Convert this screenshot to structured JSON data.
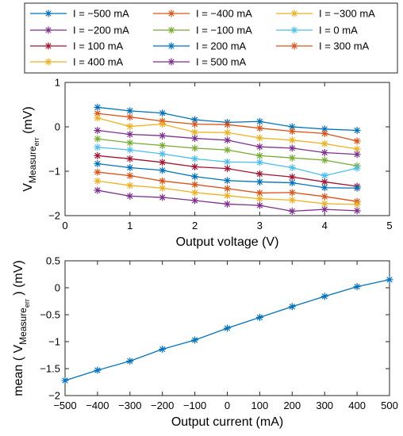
{
  "chart_data": [
    {
      "type": "line",
      "xlabel": "Output voltage (V)",
      "ylabel_main": "V",
      "ylabel_sub": "Measure",
      "ylabel_subsub": "err",
      "ylabel_unit": "(mV)",
      "xlim": [
        0,
        5
      ],
      "ylim": [
        -2,
        1
      ],
      "xticks": [
        0,
        1,
        2,
        3,
        4,
        5
      ],
      "yticks": [
        -2,
        -1,
        0,
        1
      ],
      "xtick_labels": [
        "0",
        "1",
        "2",
        "3",
        "4",
        "5"
      ],
      "ytick_labels": [
        "−2",
        "−1",
        "0",
        "1"
      ],
      "grid": false,
      "legend_placement": "top (outside, 3 columns)",
      "x": [
        0.5,
        1.0,
        1.5,
        2.0,
        2.5,
        3.0,
        3.5,
        4.0,
        4.5
      ],
      "series": [
        {
          "name": "I = −500 mA",
          "color": "#0072BD",
          "values": [
            0.44,
            0.36,
            0.31,
            0.16,
            0.1,
            0.12,
            0.0,
            -0.05,
            -0.08
          ]
        },
        {
          "name": "I = −400 mA",
          "color": "#D95319",
          "values": [
            0.3,
            0.22,
            0.13,
            0.06,
            0.05,
            -0.03,
            -0.1,
            -0.15,
            -0.32
          ]
        },
        {
          "name": "I = −300 mA",
          "color": "#EDB120",
          "values": [
            0.2,
            0.01,
            0.06,
            -0.12,
            -0.13,
            -0.25,
            -0.3,
            -0.38,
            -0.5
          ]
        },
        {
          "name": "I = −200 mA",
          "color": "#7E2F8E",
          "values": [
            -0.08,
            -0.17,
            -0.2,
            -0.26,
            -0.3,
            -0.45,
            -0.48,
            -0.58,
            -0.62
          ]
        },
        {
          "name": "I = −100 mA",
          "color": "#77AC30",
          "values": [
            -0.27,
            -0.36,
            -0.42,
            -0.48,
            -0.52,
            -0.65,
            -0.7,
            -0.75,
            -0.88
          ]
        },
        {
          "name": "I = 0 mA",
          "color": "#4DBEEE",
          "values": [
            -0.46,
            -0.52,
            -0.61,
            -0.72,
            -0.79,
            -0.8,
            -0.92,
            -1.1,
            -0.93
          ]
        },
        {
          "name": "I = 100 mA",
          "color": "#A2142F",
          "values": [
            -0.65,
            -0.72,
            -0.8,
            -0.9,
            -0.94,
            -1.06,
            -1.13,
            -1.24,
            -1.34
          ]
        },
        {
          "name": "I = 200 mA",
          "color": "#0072BD",
          "values": [
            -0.83,
            -0.92,
            -0.98,
            -1.12,
            -1.21,
            -1.24,
            -1.26,
            -1.37,
            -1.38
          ]
        },
        {
          "name": "I = 300 mA",
          "color": "#D95319",
          "values": [
            -1.02,
            -1.1,
            -1.22,
            -1.3,
            -1.39,
            -1.49,
            -1.48,
            -1.57,
            -1.68
          ]
        },
        {
          "name": "I = 400 mA",
          "color": "#EDB120",
          "values": [
            -1.22,
            -1.32,
            -1.38,
            -1.48,
            -1.55,
            -1.62,
            -1.65,
            -1.73,
            -1.75
          ]
        },
        {
          "name": "I = 500 mA",
          "color": "#7E2F8E",
          "values": [
            -1.43,
            -1.56,
            -1.59,
            -1.66,
            -1.74,
            -1.77,
            -1.9,
            -1.86,
            -1.89
          ]
        }
      ]
    },
    {
      "type": "line",
      "xlabel": "Output current (mA)",
      "ylabel_main": "mean ( V",
      "ylabel_sub": "Measure",
      "ylabel_subsub": "err",
      "ylabel_unit": ") (mV)",
      "xlim": [
        -500,
        500
      ],
      "ylim": [
        -2,
        0.5
      ],
      "xticks": [
        -500,
        -400,
        -300,
        -200,
        -100,
        0,
        100,
        200,
        300,
        400,
        500
      ],
      "yticks": [
        -2,
        -1.5,
        -1,
        -0.5,
        0,
        0.5
      ],
      "xtick_labels": [
        "−500",
        "−400",
        "−300",
        "−200",
        "−100",
        "0",
        "100",
        "200",
        "300",
        "400",
        "500"
      ],
      "ytick_labels": [
        "−2",
        "−1.5",
        "−1",
        "−0.5",
        "0",
        "0.5"
      ],
      "grid": false,
      "x": [
        -500,
        -400,
        -300,
        -200,
        -100,
        0,
        100,
        200,
        300,
        400,
        500
      ],
      "series": [
        {
          "color": "#0072BD",
          "values": [
            -1.72,
            -1.53,
            -1.36,
            -1.14,
            -0.97,
            -0.75,
            -0.55,
            -0.35,
            -0.16,
            0.02,
            0.15
          ]
        }
      ]
    }
  ]
}
